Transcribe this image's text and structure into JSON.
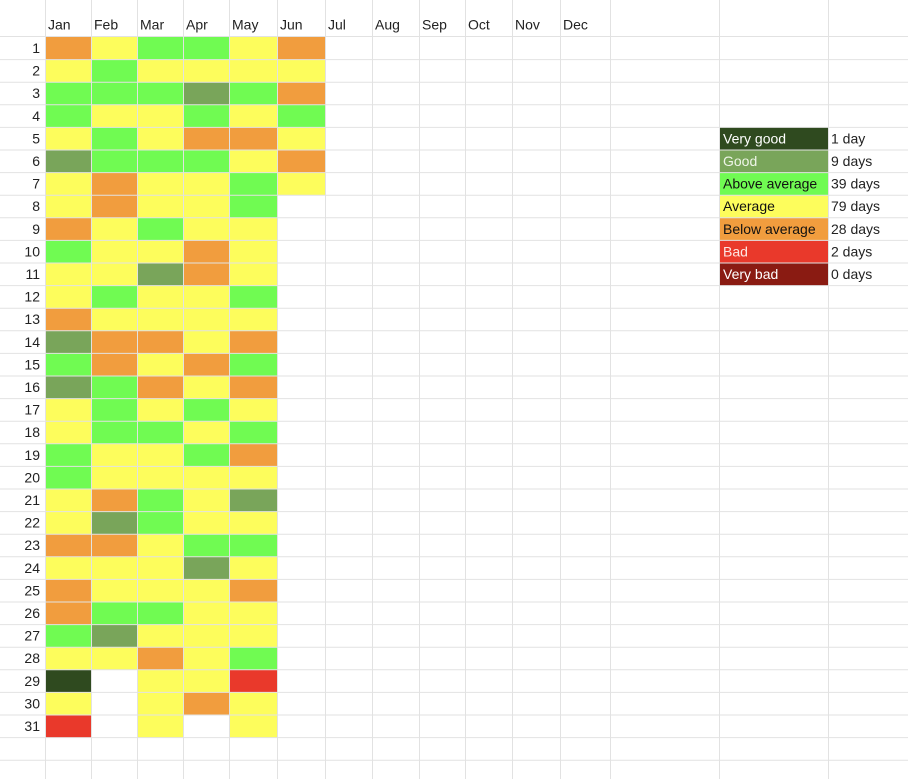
{
  "columns": [
    "Jan",
    "Feb",
    "Mar",
    "Apr",
    "May",
    "Jun",
    "Jul",
    "Aug",
    "Sep",
    "Oct",
    "Nov",
    "Dec"
  ],
  "row_numbers": [
    1,
    2,
    3,
    4,
    5,
    6,
    7,
    8,
    9,
    10,
    11,
    12,
    13,
    14,
    15,
    16,
    17,
    18,
    19,
    20,
    21,
    22,
    23,
    24,
    25,
    26,
    27,
    28,
    29,
    30,
    31
  ],
  "cells": [
    [
      "Below average",
      "Average",
      "Above average",
      "Above average",
      "Average",
      "Below average"
    ],
    [
      "Average",
      "Above average",
      "Average",
      "Average",
      "Average",
      "Average"
    ],
    [
      "Above average",
      "Above average",
      "Above average",
      "Good",
      "Above average",
      "Below average"
    ],
    [
      "Above average",
      "Average",
      "Average",
      "Above average",
      "Average",
      "Above average"
    ],
    [
      "Average",
      "Above average",
      "Average",
      "Below average",
      "Below average",
      "Average"
    ],
    [
      "Good",
      "Above average",
      "Above average",
      "Above average",
      "Average",
      "Below average"
    ],
    [
      "Average",
      "Below average",
      "Average",
      "Average",
      "Above average",
      "Average"
    ],
    [
      "Average",
      "Below average",
      "Average",
      "Average",
      "Above average"
    ],
    [
      "Below average",
      "Average",
      "Above average",
      "Average",
      "Average"
    ],
    [
      "Above average",
      "Average",
      "Average",
      "Below average",
      "Average"
    ],
    [
      "Average",
      "Average",
      "Good",
      "Below average",
      "Average"
    ],
    [
      "Average",
      "Above average",
      "Average",
      "Average",
      "Above average"
    ],
    [
      "Below average",
      "Average",
      "Average",
      "Average",
      "Average"
    ],
    [
      "Good",
      "Below average",
      "Below average",
      "Average",
      "Below average"
    ],
    [
      "Above average",
      "Below average",
      "Average",
      "Below average",
      "Above average"
    ],
    [
      "Good",
      "Above average",
      "Below average",
      "Average",
      "Below average"
    ],
    [
      "Average",
      "Above average",
      "Average",
      "Above average",
      "Average"
    ],
    [
      "Average",
      "Above average",
      "Above average",
      "Average",
      "Above average"
    ],
    [
      "Above average",
      "Average",
      "Average",
      "Above average",
      "Below average"
    ],
    [
      "Above average",
      "Average",
      "Average",
      "Average",
      "Average"
    ],
    [
      "Average",
      "Below average",
      "Above average",
      "Average",
      "Good"
    ],
    [
      "Average",
      "Good",
      "Above average",
      "Average",
      "Average"
    ],
    [
      "Below average",
      "Below average",
      "Average",
      "Above average",
      "Above average"
    ],
    [
      "Average",
      "Average",
      "Average",
      "Good",
      "Average"
    ],
    [
      "Below average",
      "Average",
      "Average",
      "Average",
      "Below average"
    ],
    [
      "Below average",
      "Above average",
      "Above average",
      "Average",
      "Average"
    ],
    [
      "Above average",
      "Good",
      "Average",
      "Average",
      "Average"
    ],
    [
      "Average",
      "Average",
      "Below average",
      "Average",
      "Above average"
    ],
    [
      "Very good",
      null,
      "Average",
      "Average",
      "Bad"
    ],
    [
      "Average",
      null,
      "Average",
      "Below average",
      "Average"
    ],
    [
      "Bad",
      null,
      "Average",
      null,
      "Average"
    ]
  ],
  "legend": [
    {
      "label": "Very good",
      "color": "#2f4a1f",
      "text_color": "#ffffff",
      "count": "1 day"
    },
    {
      "label": "Good",
      "color": "#79a55a",
      "text_color": "#eef5e8",
      "count": "9 days"
    },
    {
      "label": "Above average",
      "color": "#70fb52",
      "text_color": "#111111",
      "count": "39 days"
    },
    {
      "label": "Average",
      "color": "#fdfd5c",
      "text_color": "#111111",
      "count": "79 days"
    },
    {
      "label": "Below average",
      "color": "#f19d3e",
      "text_color": "#111111",
      "count": "28 days"
    },
    {
      "label": "Bad",
      "color": "#e9392b",
      "text_color": "#fde6e3",
      "count": "2 days"
    },
    {
      "label": "Very bad",
      "color": "#8a1b12",
      "text_color": "#ffffff",
      "count": "0 days"
    }
  ]
}
